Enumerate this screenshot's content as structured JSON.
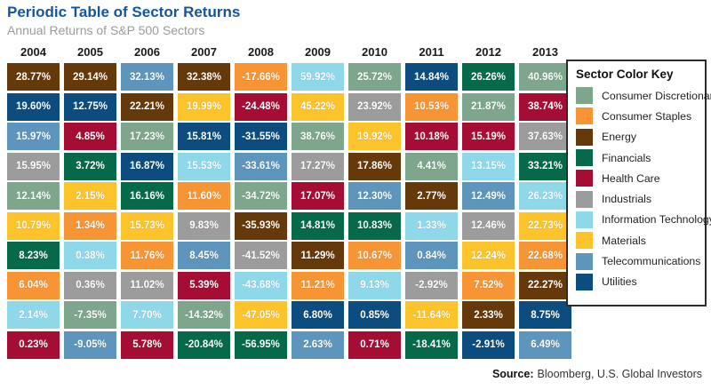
{
  "page": {
    "title": "Periodic Table of Sector Returns",
    "subtitle": "Annual Returns of S&P 500 Sectors",
    "source_label": "Source:",
    "source_text": "Bloomberg, U.S. Global Investors"
  },
  "colors": {
    "title_blue": "#16559E",
    "subtitle_gray": "#9B9B9B",
    "cell_text": "#FFFFFF",
    "legend_border": "#2B2B2B"
  },
  "legend": {
    "title": "Sector Color Key",
    "items": [
      {
        "label": "Consumer Discretionary",
        "color": "#7DA68C"
      },
      {
        "label": "Consumer Staples",
        "color": "#F79434"
      },
      {
        "label": "Energy",
        "color": "#66390B"
      },
      {
        "label": "Financials",
        "color": "#06694A"
      },
      {
        "label": "Health Care",
        "color": "#A50D35"
      },
      {
        "label": "Industrials",
        "color": "#9C9C9C"
      },
      {
        "label": "Information Technology",
        "color": "#8ED8EA"
      },
      {
        "label": "Materials",
        "color": "#FCC32B"
      },
      {
        "label": "Telecommunications",
        "color": "#5D95BD"
      },
      {
        "label": "Utilities",
        "color": "#0D4C7F"
      }
    ]
  },
  "chart_data": {
    "type": "table",
    "title": "Periodic Table of Sector Returns",
    "subtitle": "Annual Returns of S&P 500 Sectors",
    "years": [
      "2004",
      "2005",
      "2006",
      "2007",
      "2008",
      "2009",
      "2010",
      "2011",
      "2012",
      "2013"
    ],
    "legend_position": "right",
    "columns": [
      {
        "year": "2004",
        "cells": [
          {
            "value": "28.77%",
            "sector": "Energy"
          },
          {
            "value": "19.60%",
            "sector": "Utilities"
          },
          {
            "value": "15.97%",
            "sector": "Telecommunications"
          },
          {
            "value": "15.95%",
            "sector": "Industrials"
          },
          {
            "value": "12.14%",
            "sector": "Consumer Discretionary"
          },
          {
            "value": "10.79%",
            "sector": "Materials"
          },
          {
            "value": "8.23%",
            "sector": "Financials"
          },
          {
            "value": "6.04%",
            "sector": "Consumer Staples"
          },
          {
            "value": "2.14%",
            "sector": "Information Technology"
          },
          {
            "value": "0.23%",
            "sector": "Health Care"
          }
        ]
      },
      {
        "year": "2005",
        "cells": [
          {
            "value": "29.14%",
            "sector": "Energy"
          },
          {
            "value": "12.75%",
            "sector": "Utilities"
          },
          {
            "value": "4.85%",
            "sector": "Health Care"
          },
          {
            "value": "3.72%",
            "sector": "Financials"
          },
          {
            "value": "2.15%",
            "sector": "Materials"
          },
          {
            "value": "1.34%",
            "sector": "Consumer Staples"
          },
          {
            "value": "0.38%",
            "sector": "Information Technology"
          },
          {
            "value": "0.36%",
            "sector": "Industrials"
          },
          {
            "value": "-7.35%",
            "sector": "Consumer Discretionary"
          },
          {
            "value": "-9.05%",
            "sector": "Telecommunications"
          }
        ]
      },
      {
        "year": "2006",
        "cells": [
          {
            "value": "32.13%",
            "sector": "Telecommunications"
          },
          {
            "value": "22.21%",
            "sector": "Energy"
          },
          {
            "value": "17.23%",
            "sector": "Consumer Discretionary"
          },
          {
            "value": "16.87%",
            "sector": "Utilities"
          },
          {
            "value": "16.16%",
            "sector": "Financials"
          },
          {
            "value": "15.73%",
            "sector": "Materials"
          },
          {
            "value": "11.76%",
            "sector": "Consumer Staples"
          },
          {
            "value": "11.02%",
            "sector": "Industrials"
          },
          {
            "value": "7.70%",
            "sector": "Information Technology"
          },
          {
            "value": "5.78%",
            "sector": "Health Care"
          }
        ]
      },
      {
        "year": "2007",
        "cells": [
          {
            "value": "32.38%",
            "sector": "Energy"
          },
          {
            "value": "19.99%",
            "sector": "Materials"
          },
          {
            "value": "15.81%",
            "sector": "Utilities"
          },
          {
            "value": "15.53%",
            "sector": "Information Technology"
          },
          {
            "value": "11.60%",
            "sector": "Consumer Staples"
          },
          {
            "value": "9.83%",
            "sector": "Industrials"
          },
          {
            "value": "8.45%",
            "sector": "Telecommunications"
          },
          {
            "value": "5.39%",
            "sector": "Health Care"
          },
          {
            "value": "-14.32%",
            "sector": "Consumer Discretionary"
          },
          {
            "value": "-20.84%",
            "sector": "Financials"
          }
        ]
      },
      {
        "year": "2008",
        "cells": [
          {
            "value": "-17.66%",
            "sector": "Consumer Staples"
          },
          {
            "value": "-24.48%",
            "sector": "Health Care"
          },
          {
            "value": "-31.55%",
            "sector": "Utilities"
          },
          {
            "value": "-33.61%",
            "sector": "Telecommunications"
          },
          {
            "value": "-34.72%",
            "sector": "Consumer Discretionary"
          },
          {
            "value": "-35.93%",
            "sector": "Energy"
          },
          {
            "value": "-41.52%",
            "sector": "Industrials"
          },
          {
            "value": "-43.68%",
            "sector": "Information Technology"
          },
          {
            "value": "-47.05%",
            "sector": "Materials"
          },
          {
            "value": "-56.95%",
            "sector": "Financials"
          }
        ]
      },
      {
        "year": "2009",
        "cells": [
          {
            "value": "59.92%",
            "sector": "Information Technology"
          },
          {
            "value": "45.22%",
            "sector": "Materials"
          },
          {
            "value": "38.76%",
            "sector": "Consumer Discretionary"
          },
          {
            "value": "17.27%",
            "sector": "Industrials"
          },
          {
            "value": "17.07%",
            "sector": "Health Care"
          },
          {
            "value": "14.81%",
            "sector": "Financials"
          },
          {
            "value": "11.29%",
            "sector": "Energy"
          },
          {
            "value": "11.21%",
            "sector": "Consumer Staples"
          },
          {
            "value": "6.80%",
            "sector": "Utilities"
          },
          {
            "value": "2.63%",
            "sector": "Telecommunications"
          }
        ]
      },
      {
        "year": "2010",
        "cells": [
          {
            "value": "25.72%",
            "sector": "Consumer Discretionary"
          },
          {
            "value": "23.92%",
            "sector": "Industrials"
          },
          {
            "value": "19.92%",
            "sector": "Materials"
          },
          {
            "value": "17.86%",
            "sector": "Energy"
          },
          {
            "value": "12.30%",
            "sector": "Telecommunications"
          },
          {
            "value": "10.83%",
            "sector": "Financials"
          },
          {
            "value": "10.67%",
            "sector": "Consumer Staples"
          },
          {
            "value": "9.13%",
            "sector": "Information Technology"
          },
          {
            "value": "0.85%",
            "sector": "Utilities"
          },
          {
            "value": "0.71%",
            "sector": "Health Care"
          }
        ]
      },
      {
        "year": "2011",
        "cells": [
          {
            "value": "14.84%",
            "sector": "Utilities"
          },
          {
            "value": "10.53%",
            "sector": "Consumer Staples"
          },
          {
            "value": "10.18%",
            "sector": "Health Care"
          },
          {
            "value": "4.41%",
            "sector": "Consumer Discretionary"
          },
          {
            "value": "2.77%",
            "sector": "Energy"
          },
          {
            "value": "1.33%",
            "sector": "Information Technology"
          },
          {
            "value": "0.84%",
            "sector": "Telecommunications"
          },
          {
            "value": "-2.92%",
            "sector": "Industrials"
          },
          {
            "value": "-11.64%",
            "sector": "Materials"
          },
          {
            "value": "-18.41%",
            "sector": "Financials"
          }
        ]
      },
      {
        "year": "2012",
        "cells": [
          {
            "value": "26.26%",
            "sector": "Financials"
          },
          {
            "value": "21.87%",
            "sector": "Consumer Discretionary"
          },
          {
            "value": "15.19%",
            "sector": "Health Care"
          },
          {
            "value": "13.15%",
            "sector": "Information Technology"
          },
          {
            "value": "12.49%",
            "sector": "Telecommunications"
          },
          {
            "value": "12.46%",
            "sector": "Industrials"
          },
          {
            "value": "12.24%",
            "sector": "Materials"
          },
          {
            "value": "7.52%",
            "sector": "Consumer Staples"
          },
          {
            "value": "2.33%",
            "sector": "Energy"
          },
          {
            "value": "-2.91%",
            "sector": "Utilities"
          }
        ]
      },
      {
        "year": "2013",
        "cells": [
          {
            "value": "40.96%",
            "sector": "Consumer Discretionary"
          },
          {
            "value": "38.74%",
            "sector": "Health Care"
          },
          {
            "value": "37.63%",
            "sector": "Industrials"
          },
          {
            "value": "33.21%",
            "sector": "Financials"
          },
          {
            "value": "26.23%",
            "sector": "Information Technology"
          },
          {
            "value": "22.73%",
            "sector": "Materials"
          },
          {
            "value": "22.68%",
            "sector": "Consumer Staples"
          },
          {
            "value": "22.27%",
            "sector": "Energy"
          },
          {
            "value": "8.75%",
            "sector": "Utilities"
          },
          {
            "value": "6.49%",
            "sector": "Telecommunications"
          }
        ]
      }
    ]
  }
}
